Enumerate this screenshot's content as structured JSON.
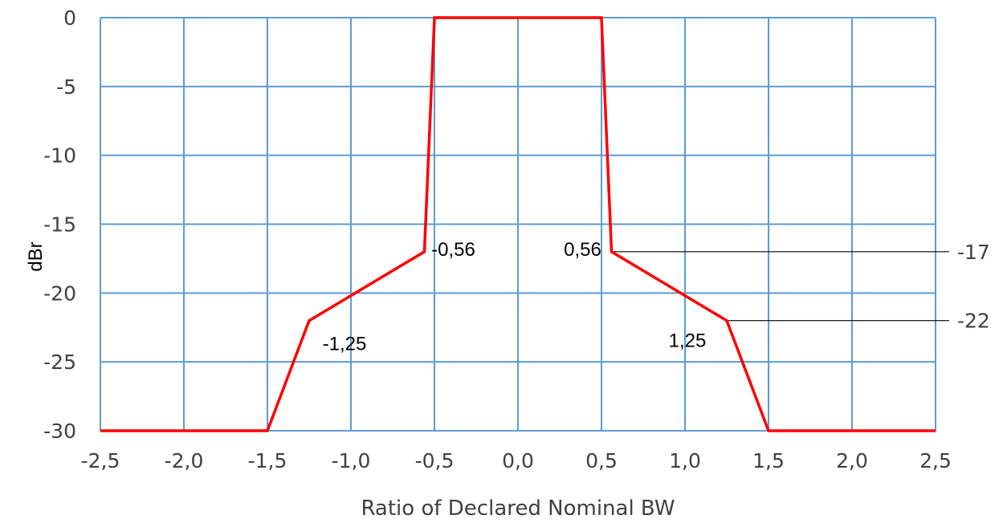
{
  "chart_data": {
    "type": "line",
    "title": "",
    "xlabel": "Ratio of Declared Nominal BW",
    "ylabel": "dBr",
    "xlim": [
      -2.5,
      2.5
    ],
    "ylim": [
      -30,
      0
    ],
    "grid": true,
    "x_tick_labels": [
      "-2,5",
      "-2,0",
      "-1,5",
      "-1,0",
      "-0,5",
      "0,0",
      "0,5",
      "1,0",
      "1,5",
      "2,0",
      "2,5"
    ],
    "y_tick_labels": [
      "0",
      "-5",
      "-10",
      "-15",
      "-20",
      "-25",
      "-30"
    ],
    "series": [
      {
        "color": "#ff0000",
        "x": [
          -2.5,
          -1.5,
          -1.25,
          -0.56,
          -0.5,
          0.5,
          0.56,
          1.25,
          1.5,
          2.5
        ],
        "y": [
          -30,
          -30,
          -22,
          -17,
          0,
          0,
          -17,
          -22,
          -30,
          -30
        ]
      }
    ],
    "annotations": [
      {
        "text": "-0,56",
        "x": -0.56,
        "y": -17
      },
      {
        "text": "0,56",
        "x": 0.56,
        "y": -17
      },
      {
        "text": "-1,25",
        "x": -1.25,
        "y": -22
      },
      {
        "text": "1,25",
        "x": 1.25,
        "y": -22
      }
    ],
    "reference_lines": [
      {
        "label": "-17",
        "x_from": 0.56,
        "y": -17
      },
      {
        "label": "-22",
        "x_from": 1.25,
        "y": -22
      }
    ]
  }
}
